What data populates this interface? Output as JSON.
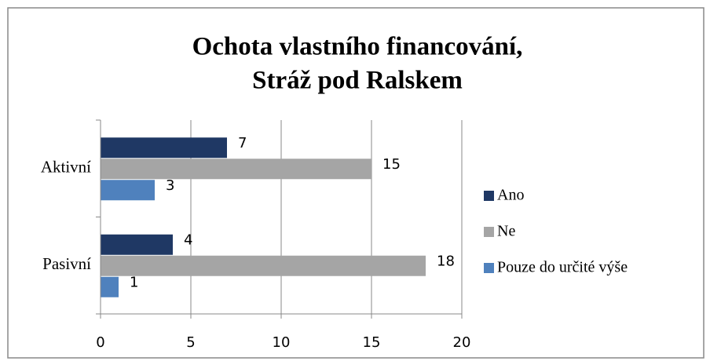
{
  "chart_data": {
    "type": "barh",
    "title": [
      "Ochota vlastního financování,",
      "Stráž pod Ralskem"
    ],
    "categories": [
      "Aktivní",
      "Pasivní"
    ],
    "series": [
      {
        "name": "Ano",
        "color": "#1f3864",
        "values": [
          7,
          4
        ]
      },
      {
        "name": "Ne",
        "color": "#a5a5a5",
        "values": [
          15,
          18
        ]
      },
      {
        "name": "Pouze do určité výše",
        "color": "#4f81bd",
        "values": [
          3,
          1
        ]
      }
    ],
    "xlim": [
      0,
      20
    ],
    "xticks": [
      0,
      5,
      10,
      15,
      20
    ],
    "grid": true,
    "legend": "right"
  }
}
